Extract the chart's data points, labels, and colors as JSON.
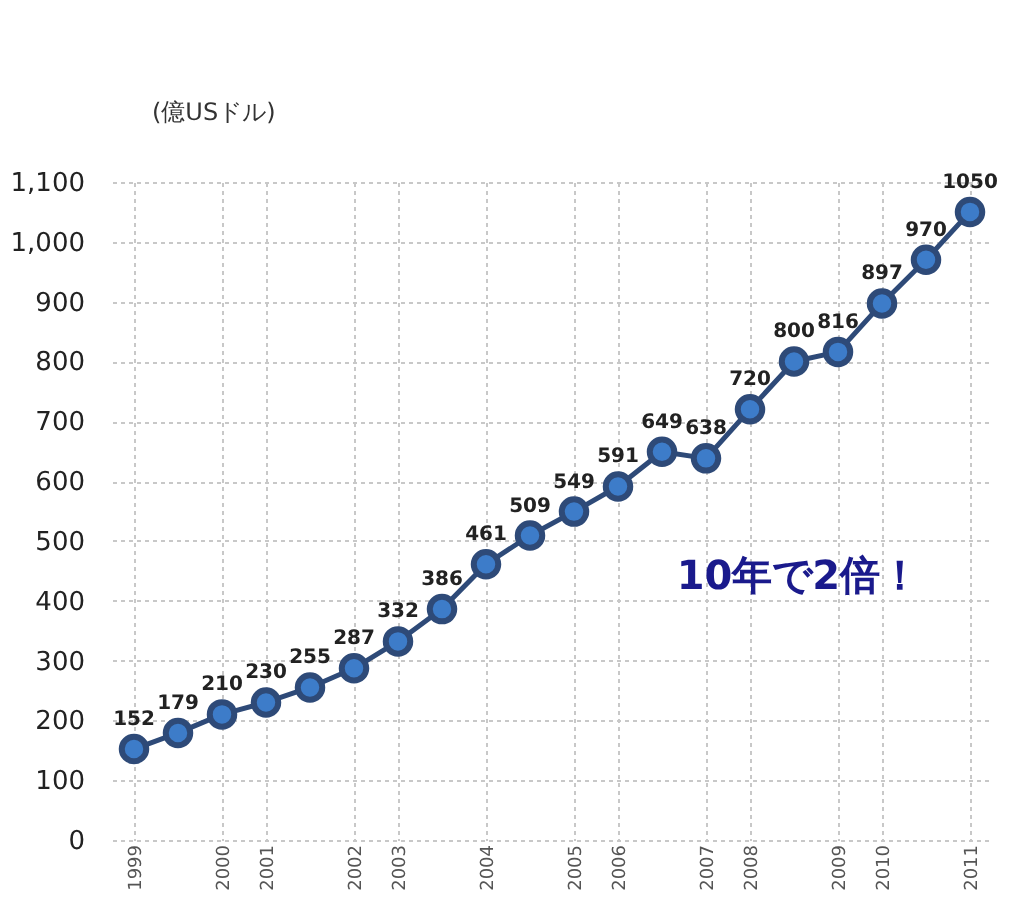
{
  "chart_data": {
    "type": "line",
    "ylabel": "(億USドル)",
    "categories": [
      "1999",
      null,
      "2000",
      "2001",
      null,
      "2002",
      "2003",
      null,
      "2004",
      null,
      "2005",
      "2006",
      null,
      "2007",
      "2008",
      null,
      "2009",
      "2010",
      null,
      "2011"
    ],
    "series": [
      {
        "color": "#2e4a78",
        "values": [
          152,
          179,
          210,
          230,
          255,
          287,
          332,
          386,
          461,
          509,
          549,
          591,
          649,
          638,
          720,
          800,
          816,
          897,
          970,
          1050
        ]
      }
    ],
    "ylim": [
      0,
      1100
    ],
    "yticks": [
      0,
      {
        "value": 100,
        "label": "100"
      },
      200,
      300,
      400,
      500,
      600,
      700,
      800,
      900,
      {
        "value": 1000,
        "label": "1,000"
      },
      {
        "value": 1100,
        "label": "1,100"
      }
    ],
    "grid": true,
    "marker": "circle",
    "data_labels": true,
    "annotations": [
      "10年で2倍！"
    ]
  }
}
